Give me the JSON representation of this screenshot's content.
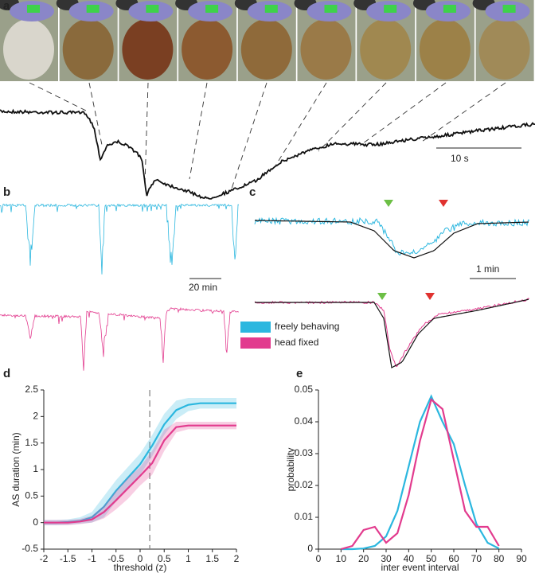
{
  "panels": {
    "labels": [
      "a",
      "b",
      "c",
      "d",
      "e"
    ],
    "scale_bars": [
      "10 s",
      "20 min",
      "1 min"
    ]
  },
  "chart_data": [
    {
      "type": "line",
      "xlabel": "threshold (z)",
      "ylabel": "AS duration (min)",
      "x": [
        -2,
        -1.75,
        -1.5,
        -1.25,
        -1,
        -0.75,
        -0.5,
        -0.25,
        0,
        0.25,
        0.5,
        0.75,
        1,
        1.25,
        1.5,
        1.75,
        2
      ],
      "series": [
        {
          "name": "freely behaving",
          "color": "#2bb7df",
          "values": [
            0,
            0,
            0.01,
            0.03,
            0.1,
            0.3,
            0.6,
            0.85,
            1.1,
            1.45,
            1.85,
            2.12,
            2.22,
            2.25,
            2.25,
            2.25,
            2.25
          ],
          "upper": [
            0.05,
            0.05,
            0.06,
            0.1,
            0.2,
            0.5,
            0.8,
            1.05,
            1.3,
            1.65,
            2.05,
            2.3,
            2.35,
            2.35,
            2.35,
            2.35,
            2.35
          ],
          "lower": [
            -0.05,
            -0.05,
            -0.04,
            -0.02,
            0,
            0.1,
            0.4,
            0.65,
            0.9,
            1.25,
            1.65,
            1.95,
            2.1,
            2.15,
            2.15,
            2.15,
            2.15
          ]
        },
        {
          "name": "head fixed",
          "color": "#e23b8e",
          "values": [
            0,
            0,
            0,
            0.02,
            0.06,
            0.2,
            0.42,
            0.65,
            0.88,
            1.12,
            1.55,
            1.8,
            1.83,
            1.83,
            1.83,
            1.83,
            1.83
          ],
          "upper": [
            0.05,
            0.05,
            0.05,
            0.07,
            0.13,
            0.32,
            0.6,
            0.85,
            1.05,
            1.35,
            1.75,
            1.9,
            1.9,
            1.9,
            1.9,
            1.9,
            1.9
          ],
          "lower": [
            -0.05,
            -0.05,
            -0.05,
            -0.03,
            0,
            0.08,
            0.25,
            0.45,
            0.7,
            0.9,
            1.35,
            1.7,
            1.76,
            1.76,
            1.76,
            1.76,
            1.76
          ]
        }
      ],
      "vline": 0.2,
      "xlim": [
        -2,
        2
      ],
      "xticks": [
        -2,
        -1.5,
        -1,
        -0.5,
        0,
        0.5,
        1,
        1.5,
        2
      ],
      "ylim": [
        -0.5,
        2.5
      ],
      "yticks": [
        -0.5,
        0,
        0.5,
        1,
        1.5,
        2,
        2.5
      ]
    },
    {
      "type": "line",
      "xlabel": "inter event interval",
      "ylabel": "probability",
      "x": [
        10,
        15,
        20,
        25,
        30,
        35,
        40,
        45,
        50,
        55,
        60,
        65,
        70,
        75,
        80
      ],
      "series": [
        {
          "name": "freely behaving",
          "color": "#2bb7df",
          "values": [
            0,
            0,
            0.0002,
            0.001,
            0.004,
            0.012,
            0.026,
            0.04,
            0.048,
            0.04,
            0.033,
            0.02,
            0.008,
            0.002,
            0.0002
          ]
        },
        {
          "name": "head fixed",
          "color": "#e23b8e",
          "values": [
            0,
            0.001,
            0.006,
            0.007,
            0.002,
            0.005,
            0.017,
            0.034,
            0.047,
            0.044,
            0.028,
            0.012,
            0.007,
            0.007,
            0.001
          ]
        }
      ],
      "xlim": [
        0,
        90
      ],
      "xticks": [
        0,
        10,
        20,
        30,
        40,
        50,
        60,
        70,
        80,
        90
      ],
      "ylim": [
        0,
        0.05
      ],
      "yticks": [
        0,
        0.01,
        0.02,
        0.03,
        0.04,
        0.05
      ]
    }
  ]
}
